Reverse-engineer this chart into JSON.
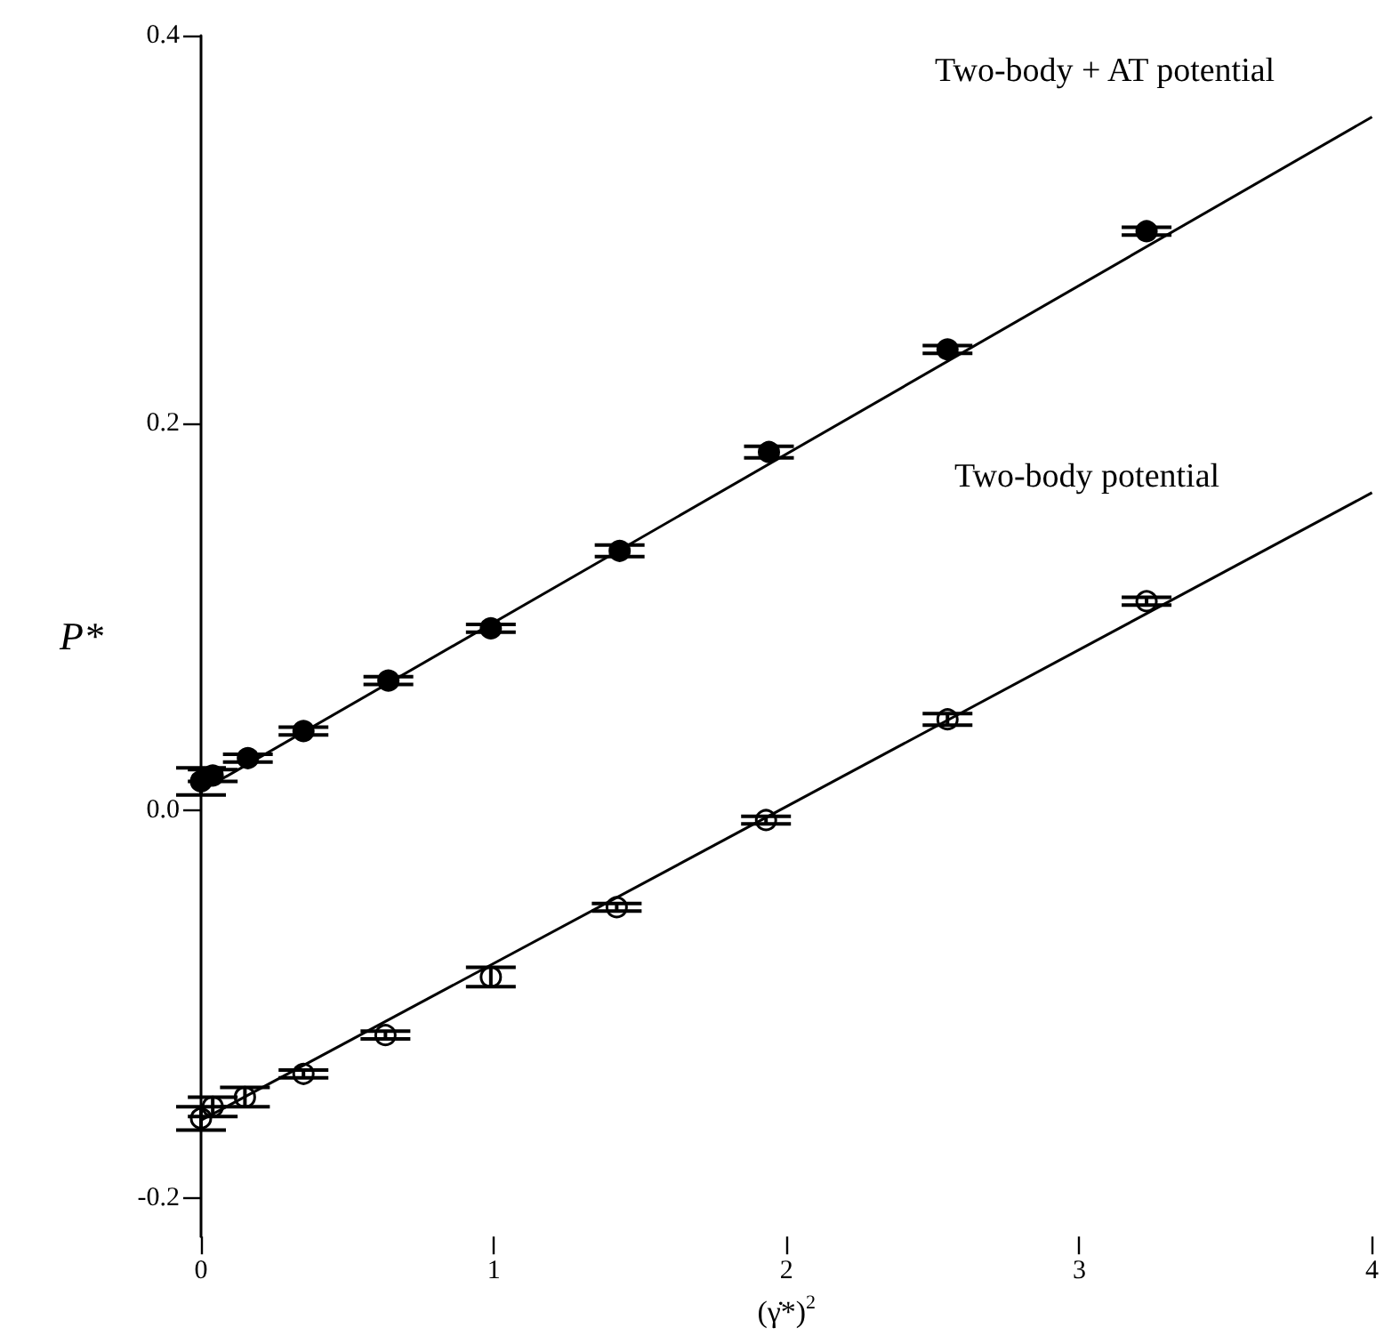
{
  "chart_data": {
    "type": "scatter",
    "xlabel": "(γ̇*)$^{2}$",
    "ylabel": "P*",
    "xlim": [
      0,
      4
    ],
    "xticks": [
      0,
      1,
      2,
      3,
      4
    ],
    "ylim": [
      -0.22,
      0.4
    ],
    "yticks": [
      {
        "value": -0.2,
        "label": "-0.2"
      },
      {
        "value": 0,
        "label": "0.0"
      },
      {
        "value": 0.2,
        "label": "0.2"
      },
      {
        "value": 0.4,
        "label": "0.4"
      }
    ],
    "grid": false,
    "series": [
      {
        "marker": "circle",
        "color": "#000000",
        "x": [
          0,
          0.04,
          0.16,
          0.35,
          0.64,
          0.99,
          1.43,
          1.94,
          2.55,
          3.23
        ],
        "values": [
          0.015,
          0.018,
          0.027,
          0.041,
          0.067,
          0.094,
          0.134,
          0.185,
          0.238,
          0.299
        ],
        "errors": [
          0.007,
          0.003,
          0.002,
          0.002,
          0.002,
          0.002,
          0.003,
          0.003,
          0.002,
          0.002
        ]
      },
      {
        "marker": "open circle",
        "color": "#000000",
        "x": [
          0,
          0.04,
          0.15,
          0.35,
          0.63,
          0.99,
          1.42,
          1.93,
          2.55,
          3.23
        ],
        "values": [
          -0.159,
          -0.153,
          -0.148,
          -0.136,
          -0.116,
          -0.086,
          -0.05,
          -0.005,
          0.047,
          0.108
        ],
        "errors": [
          0.006,
          0.005,
          0.005,
          0.002,
          0.002,
          0.005,
          0.002,
          0.002,
          0.003,
          0.002
        ]
      },
      {
        "type": "line",
        "color": "#000000",
        "x": [
          0,
          4
        ],
        "values": [
          0.01,
          0.358
        ]
      },
      {
        "type": "line",
        "color": "#000000",
        "x": [
          0,
          4
        ],
        "values": [
          -0.16,
          0.164
        ]
      }
    ],
    "annotations": [
      "Two-body + AT potential",
      "Two-body potential"
    ]
  }
}
